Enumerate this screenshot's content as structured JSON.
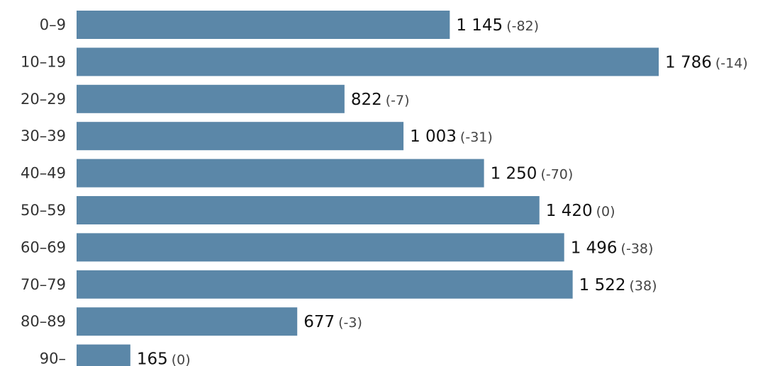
{
  "chart_data": {
    "type": "bar",
    "orientation": "horizontal",
    "title": "",
    "xlabel": "",
    "ylabel": "",
    "grid": false,
    "legend": "none",
    "xlim": [
      0,
      1786
    ],
    "bar_color": "#5b87a8",
    "categories": [
      "0–9",
      "10–19",
      "20–29",
      "30–39",
      "40–49",
      "50–59",
      "60–69",
      "70–79",
      "80–89",
      "90–"
    ],
    "values": [
      1145,
      1786,
      822,
      1003,
      1250,
      1420,
      1496,
      1522,
      677,
      165
    ],
    "value_labels": [
      "1 145",
      "1 786",
      "822",
      "1 003",
      "1 250",
      "1 420",
      "1 496",
      "1 522",
      "677",
      "165"
    ],
    "changes": [
      -82,
      -14,
      -7,
      -31,
      -70,
      0,
      -38,
      38,
      -3,
      0
    ],
    "change_labels": [
      "(-82)",
      "(-14)",
      "(-7)",
      "(-31)",
      "(-70)",
      "(0)",
      "(-38)",
      "(38)",
      "(-3)",
      "(0)"
    ]
  }
}
